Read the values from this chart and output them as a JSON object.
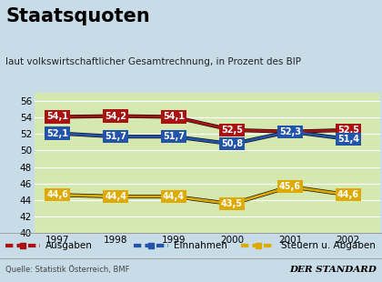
{
  "title": "Staatsquoten",
  "subtitle": "laut volkswirtschaftlicher Gesamtrechnung, in Prozent des BIP",
  "years": [
    1997,
    1998,
    1999,
    2000,
    2001,
    2002
  ],
  "ausgaben": [
    54.1,
    54.2,
    54.1,
    52.5,
    52.3,
    52.5
  ],
  "einnahmen": [
    52.1,
    51.7,
    51.7,
    50.8,
    52.3,
    51.4
  ],
  "steuern": [
    44.6,
    44.4,
    44.4,
    43.5,
    45.6,
    44.6
  ],
  "ausgaben_color": "#aa1111",
  "einnahmen_color": "#2255aa",
  "steuern_color": "#ddaa00",
  "bg_plot": "#d4e8b0",
  "bg_outer": "#c8dce8",
  "ylim": [
    40,
    57
  ],
  "yticks": [
    40,
    42,
    44,
    46,
    48,
    50,
    52,
    54,
    56
  ],
  "source": "Quelle: Statistik Österreich, BMF",
  "brand": "DER STANDARD",
  "legend": [
    "Ausgaben",
    "Einnahmen",
    "Steuern u. Abgaben"
  ],
  "title_fontsize": 15,
  "subtitle_fontsize": 7.5,
  "tick_fontsize": 7.5,
  "label_fontsize": 7.0,
  "legend_fontsize": 7.5,
  "source_fontsize": 6.0,
  "brand_fontsize": 7.5
}
